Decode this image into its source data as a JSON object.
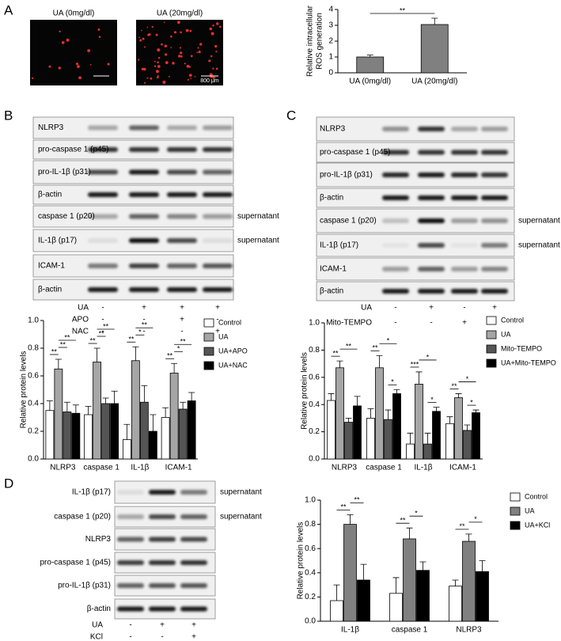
{
  "panels": [
    "A",
    "B",
    "C",
    "D"
  ],
  "micrographs": [
    {
      "label": "UA (0mg/dl)"
    },
    {
      "label": "UA (20mg/dl)",
      "scale_bar": "800 μm"
    }
  ],
  "blots": [
    {
      "rows": [
        {
          "label": "NLRP3"
        },
        {
          "label": "pro-caspase 1 (p45)"
        },
        {
          "label": "pro-IL-1β (p31)"
        },
        {
          "label": "β-actin"
        },
        {
          "label": "caspase 1 (p20)",
          "note": "supernatant"
        },
        {
          "label": "IL-1β (p17)",
          "note": "supernatant"
        },
        {
          "label": "ICAM-1"
        },
        {
          "label": "β-actin"
        }
      ],
      "treatments": [
        {
          "name": "UA",
          "signs": [
            "-",
            "+",
            "+",
            "+"
          ]
        },
        {
          "name": "APO",
          "signs": [
            "-",
            "-",
            "+",
            "-"
          ]
        },
        {
          "name": "NAC",
          "signs": [
            "-",
            "-",
            "-",
            "+"
          ]
        }
      ]
    },
    {
      "rows": [
        {
          "label": "NLRP3"
        },
        {
          "label": "pro-caspase 1 (p45)"
        },
        {
          "label": "pro-IL-1β (p31)"
        },
        {
          "label": "β-actin"
        },
        {
          "label": "caspase 1 (p20)",
          "note": "supernatant"
        },
        {
          "label": "IL-1β (p17)",
          "note": "supernatant"
        },
        {
          "label": "ICAM-1"
        },
        {
          "label": "β-actin"
        }
      ],
      "treatments": [
        {
          "name": "UA",
          "signs": [
            "-",
            "+",
            "-",
            "+"
          ]
        },
        {
          "name": "Mito-TEMPO",
          "signs": [
            "-",
            "-",
            "+",
            "+"
          ]
        }
      ]
    },
    {
      "rows": [
        {
          "label": "IL-1β (p17)",
          "note": "supernatant"
        },
        {
          "label": "caspase 1 (p20)",
          "note": "supernatant"
        },
        {
          "label": "NLRP3"
        },
        {
          "label": "pro-caspase 1 (p45)"
        },
        {
          "label": "pro-IL-1β (p31)"
        },
        {
          "label": "β-actin"
        }
      ],
      "treatments": [
        {
          "name": "UA",
          "signs": [
            "-",
            "+",
            "+"
          ]
        },
        {
          "name": "KCl",
          "signs": [
            "-",
            "-",
            "+"
          ]
        }
      ]
    }
  ],
  "chart_data": [
    {
      "type": "bar",
      "ylabel": [
        "Relative intracellular",
        "ROS generation"
      ],
      "categories": [
        "UA (0mg/dl)",
        "UA (20mg/dl)"
      ],
      "series": [
        {
          "color": "#808080",
          "values": [
            1.0,
            3.05
          ],
          "errors": [
            0.12,
            0.4
          ]
        }
      ],
      "ylim": [
        0,
        4
      ],
      "yticks": [
        0,
        1,
        2,
        3,
        4
      ],
      "annotations": [
        "**"
      ]
    },
    {
      "type": "bar",
      "ylabel": [
        "Relative protein levels"
      ],
      "categories": [
        "NLRP3",
        "caspase 1",
        "IL-1β",
        "ICAM-1"
      ],
      "series": [
        {
          "name": "Control",
          "color": "#ffffff",
          "values": [
            0.35,
            0.32,
            0.14,
            0.3
          ],
          "errors": [
            0.07,
            0.06,
            0.11,
            0.07
          ]
        },
        {
          "name": "UA",
          "color": "#a6a6a6",
          "values": [
            0.65,
            0.7,
            0.71,
            0.62
          ],
          "errors": [
            0.07,
            0.1,
            0.1,
            0.07
          ]
        },
        {
          "name": "UA+APO",
          "color": "#555555",
          "values": [
            0.34,
            0.4,
            0.41,
            0.36
          ],
          "errors": [
            0.07,
            0.04,
            0.12,
            0.05
          ]
        },
        {
          "name": "UA+NAC",
          "color": "#000000",
          "values": [
            0.33,
            0.4,
            0.2,
            0.42
          ],
          "errors": [
            0.06,
            0.09,
            0.12,
            0.06
          ]
        }
      ],
      "ylim": [
        0,
        1.0
      ],
      "yticks": [
        {
          "value": 0,
          "label": "0.0"
        },
        0.2,
        0.4,
        0.6,
        0.8,
        {
          "value": 1.0,
          "label": "1.0"
        }
      ],
      "annotations": [
        "**",
        "**",
        "**",
        "**",
        "**",
        "**",
        "**",
        "*",
        "**",
        "**",
        "*",
        "**"
      ]
    },
    {
      "type": "bar",
      "ylabel": [
        "Relative protein levels"
      ],
      "categories": [
        "NLRP3",
        "caspase 1",
        "IL-1β",
        "ICAM-1"
      ],
      "series": [
        {
          "name": "Control",
          "color": "#ffffff",
          "values": [
            0.43,
            0.3,
            0.11,
            0.26
          ],
          "errors": [
            0.05,
            0.07,
            0.08,
            0.05
          ]
        },
        {
          "name": "UA",
          "color": "#a6a6a6",
          "values": [
            0.67,
            0.67,
            0.55,
            0.45
          ],
          "errors": [
            0.05,
            0.09,
            0.09,
            0.03
          ]
        },
        {
          "name": "Mito-TEMPO",
          "color": "#555555",
          "values": [
            0.27,
            0.29,
            0.11,
            0.21
          ],
          "errors": [
            0.03,
            0.07,
            0.08,
            0.04
          ]
        },
        {
          "name": "UA+Mito-TEMPO",
          "color": "#000000",
          "values": [
            0.39,
            0.48,
            0.35,
            0.34
          ],
          "errors": [
            0.07,
            0.03,
            0.03,
            0.02
          ]
        }
      ],
      "ylim": [
        0,
        1.0
      ],
      "yticks": [
        {
          "value": 0,
          "label": "0.0"
        },
        0.2,
        0.4,
        0.6,
        0.8,
        {
          "value": 1.0,
          "label": "1.0"
        }
      ],
      "annotations": [
        "**",
        "**",
        "**",
        "*",
        "*",
        "***",
        "*",
        "*",
        "**",
        "*",
        "*"
      ]
    },
    {
      "type": "bar",
      "ylabel": [
        "Relative protein levels"
      ],
      "categories": [
        "IL-1β",
        "caspase 1",
        "NLRP3"
      ],
      "series": [
        {
          "name": "Control",
          "color": "#ffffff",
          "values": [
            0.17,
            0.23,
            0.29
          ],
          "errors": [
            0.13,
            0.13,
            0.05
          ]
        },
        {
          "name": "UA",
          "color": "#808080",
          "values": [
            0.8,
            0.68,
            0.66
          ],
          "errors": [
            0.08,
            0.09,
            0.06
          ]
        },
        {
          "name": "UA+KCl",
          "color": "#000000",
          "values": [
            0.34,
            0.42,
            0.41
          ],
          "errors": [
            0.13,
            0.07,
            0.09
          ]
        }
      ],
      "ylim": [
        0,
        1.0
      ],
      "yticks": [
        {
          "value": 0,
          "label": "0.0"
        },
        0.2,
        0.4,
        0.6,
        0.8,
        {
          "value": 1.0,
          "label": "1.0"
        }
      ],
      "annotations": [
        "**",
        "**",
        "**",
        "*",
        "**",
        "*"
      ]
    }
  ]
}
